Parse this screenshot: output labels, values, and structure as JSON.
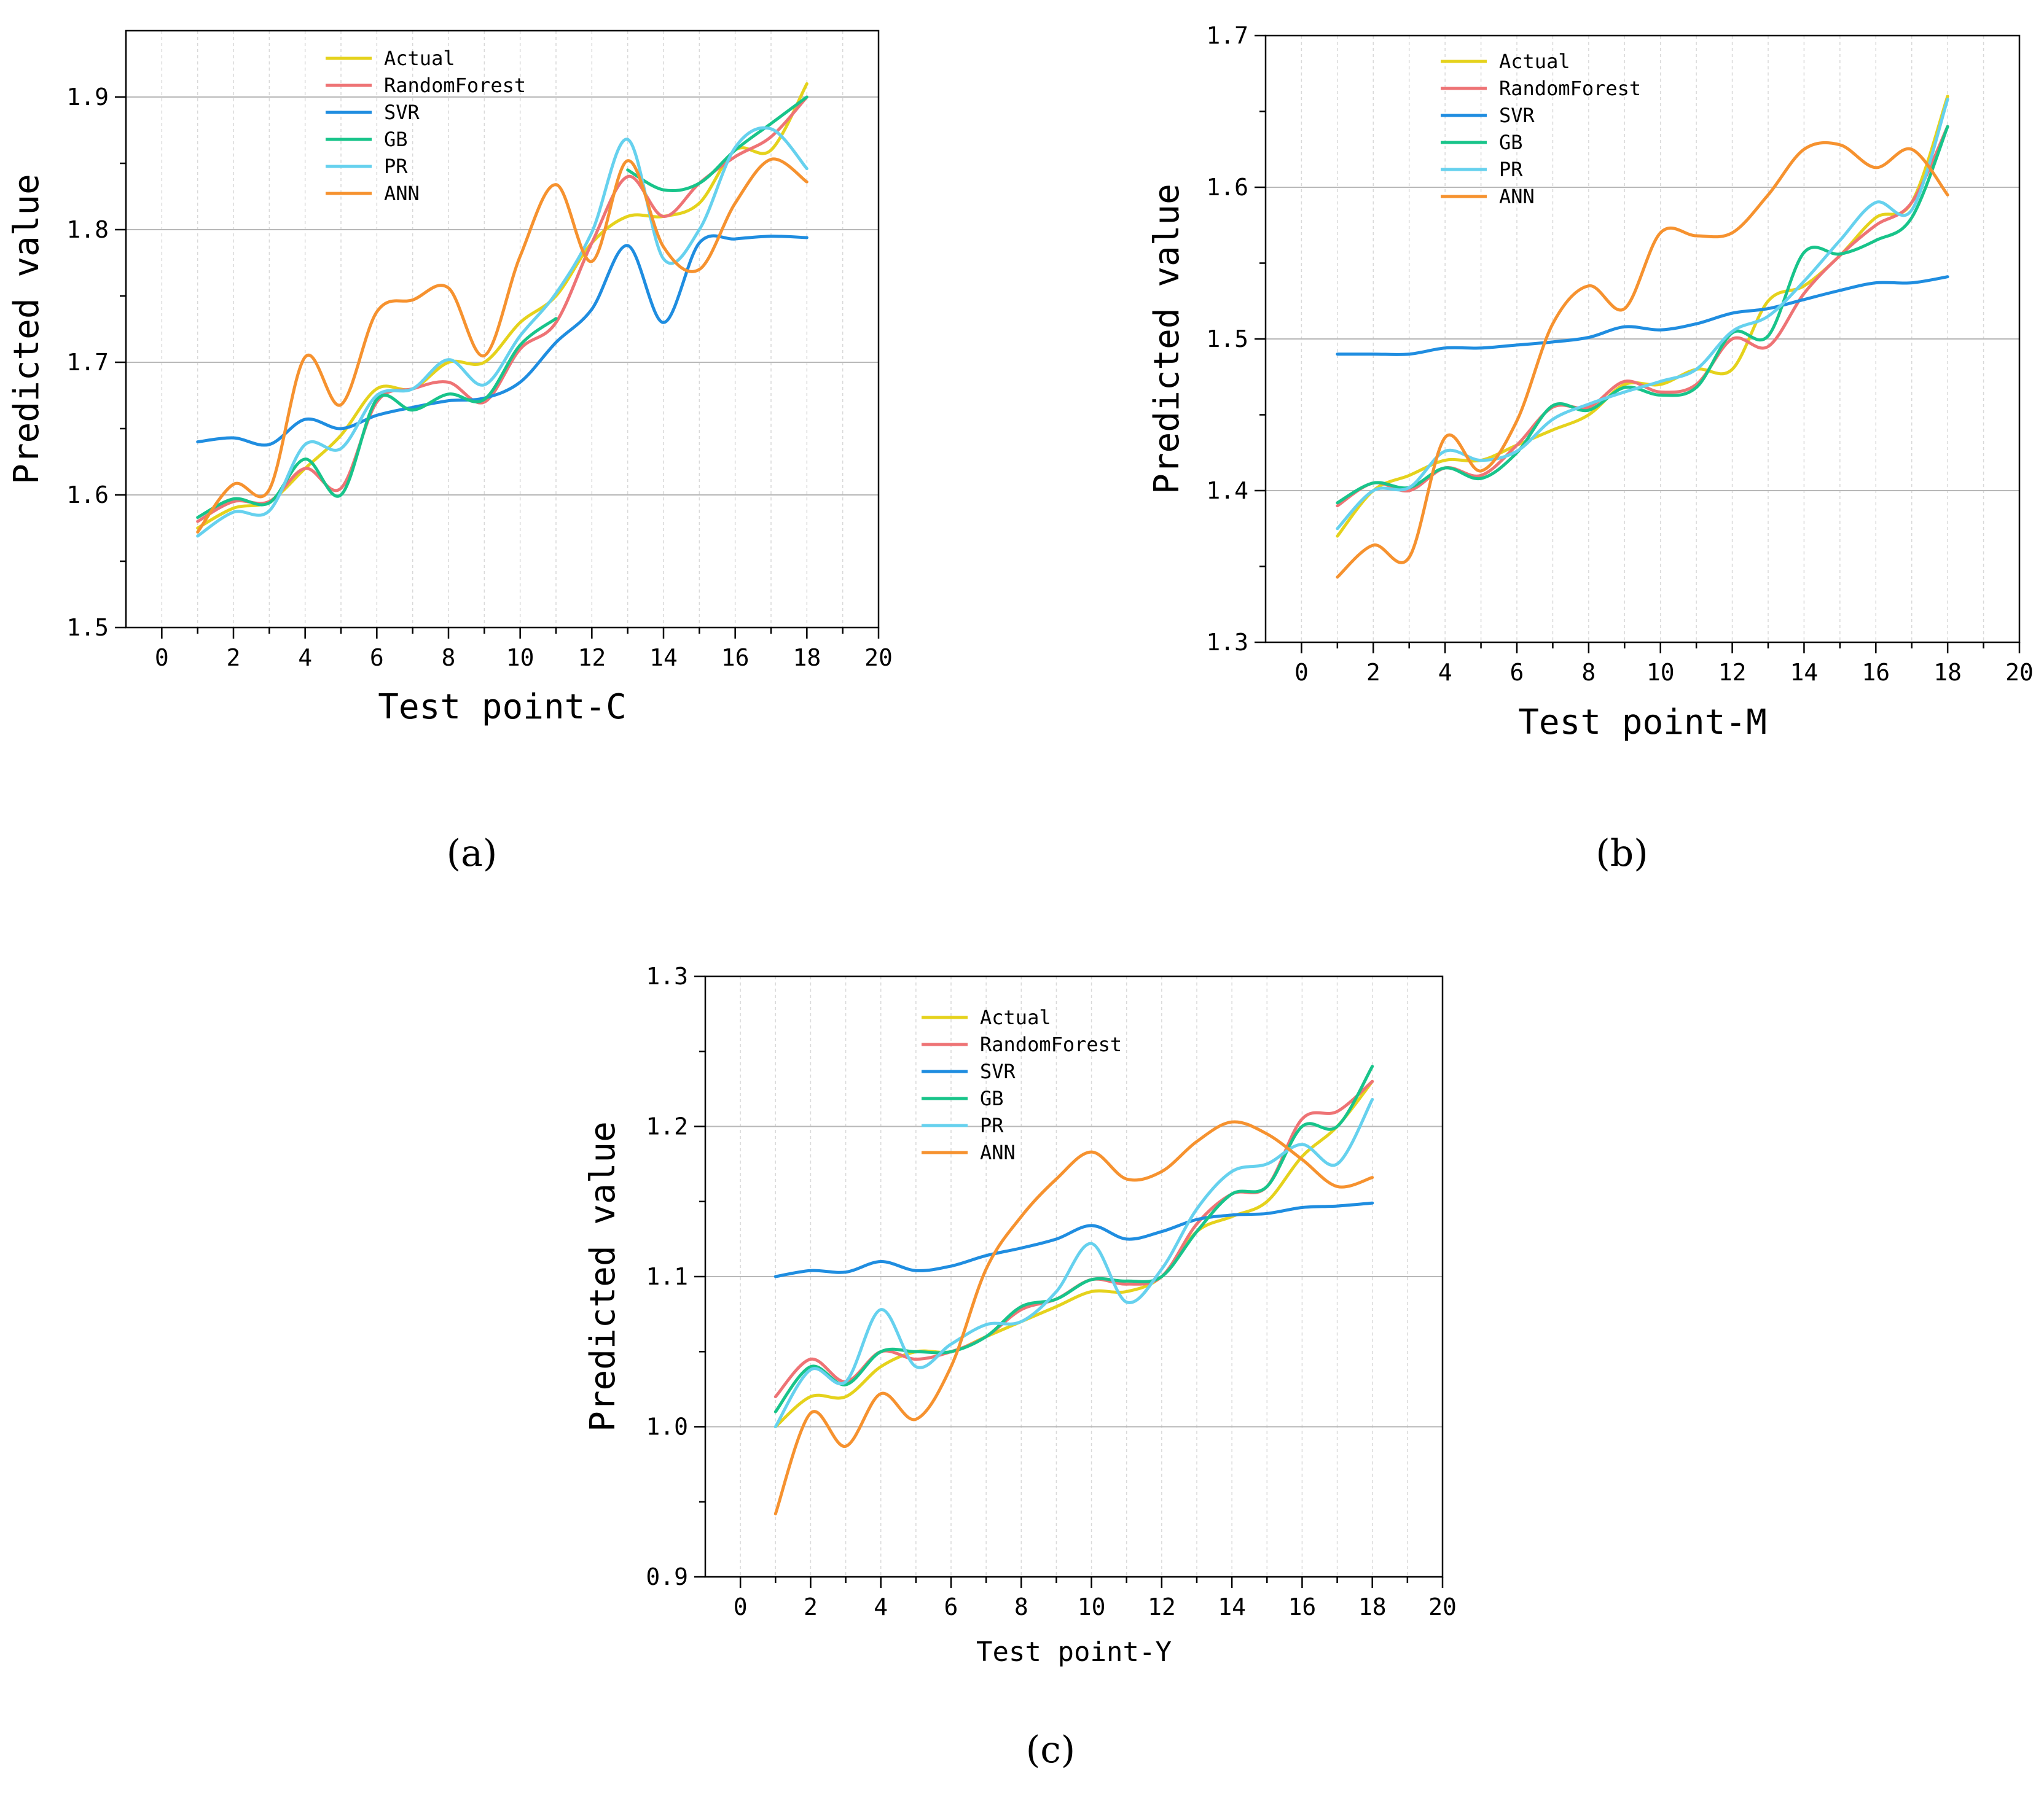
{
  "colors": {
    "Actual": "#e5d21c",
    "RandomForest": "#ee7375",
    "SVR": "#1f8de0",
    "GB": "#18c48a",
    "PR": "#66d1ee",
    "ANN": "#f6922f"
  },
  "chart_data": [
    {
      "type": "line",
      "panel_label": "(a)",
      "xlabel": "Test point-C",
      "ylabel": "Predicted value",
      "xlim": [
        -1,
        20
      ],
      "ylim": [
        1.5,
        1.95
      ],
      "xticks": [
        0,
        2,
        4,
        6,
        8,
        10,
        12,
        14,
        16,
        18,
        20
      ],
      "xtick_labels": [
        "0",
        "2",
        "4",
        "6",
        "8",
        "10",
        "12",
        "14",
        "16",
        "18",
        "20"
      ],
      "yticks": [
        1.5,
        1.6,
        1.7,
        1.8,
        1.9
      ],
      "ytick_labels": [
        "1.5",
        "1.6",
        "1.7",
        "1.8",
        "1.9"
      ],
      "grid": "horizontal",
      "legend": "top-center",
      "x": [
        1,
        2,
        3,
        4,
        5,
        6,
        7,
        8,
        9,
        10,
        11,
        12,
        13,
        14,
        15,
        16,
        17,
        18
      ],
      "series": [
        {
          "name": "Actual",
          "values": [
            1.575,
            1.59,
            1.595,
            1.62,
            1.645,
            1.68,
            1.68,
            1.7,
            1.7,
            1.73,
            1.75,
            1.79,
            1.81,
            1.81,
            1.82,
            1.86,
            1.86,
            1.91
          ]
        },
        {
          "name": "RandomForest",
          "values": [
            1.58,
            1.595,
            1.595,
            1.62,
            1.605,
            1.67,
            1.68,
            1.685,
            1.67,
            1.71,
            1.73,
            1.79,
            1.84,
            1.81,
            1.835,
            1.855,
            1.87,
            1.9
          ]
        },
        {
          "name": "SVR",
          "values": [
            1.64,
            1.643,
            1.638,
            1.657,
            1.65,
            1.66,
            1.666,
            1.671,
            1.673,
            1.685,
            1.715,
            1.74,
            1.788,
            1.73,
            1.79,
            1.793,
            1.795,
            1.794
          ]
        },
        {
          "name": "GB",
          "values": [
            1.583,
            1.597,
            1.594,
            1.627,
            1.6,
            1.672,
            1.664,
            1.676,
            1.672,
            1.713,
            1.733,
            null,
            1.845,
            1.83,
            1.835,
            1.86,
            1.88,
            1.9
          ]
        },
        {
          "name": "PR",
          "values": [
            1.569,
            1.587,
            1.588,
            1.638,
            1.635,
            1.675,
            1.68,
            1.702,
            1.683,
            1.72,
            1.752,
            1.798,
            1.868,
            1.778,
            1.8,
            1.862,
            1.876,
            1.846
          ]
        },
        {
          "name": "ANN",
          "values": [
            1.572,
            1.608,
            1.604,
            1.704,
            1.668,
            1.738,
            1.747,
            1.756,
            1.705,
            1.78,
            1.834,
            1.776,
            1.852,
            1.787,
            1.77,
            1.82,
            1.853,
            1.836
          ]
        }
      ]
    },
    {
      "type": "line",
      "panel_label": "(b)",
      "xlabel": "Test point-M",
      "ylabel": "Predicted value",
      "xlim": [
        -1,
        20
      ],
      "ylim": [
        1.3,
        1.7
      ],
      "xticks": [
        0,
        2,
        4,
        6,
        8,
        10,
        12,
        14,
        16,
        18,
        20
      ],
      "xtick_labels": [
        "0",
        "2",
        "4",
        "6",
        "8",
        "10",
        "12",
        "14",
        "16",
        "18",
        "20"
      ],
      "yticks": [
        1.3,
        1.4,
        1.5,
        1.6,
        1.7
      ],
      "ytick_labels": [
        "1.3",
        "1.4",
        "1.5",
        "1.6",
        "1.7"
      ],
      "grid": "horizontal",
      "legend": "top-center",
      "x": [
        1,
        2,
        3,
        4,
        5,
        6,
        7,
        8,
        9,
        10,
        11,
        12,
        13,
        14,
        15,
        16,
        17,
        18
      ],
      "series": [
        {
          "name": "Actual",
          "values": [
            1.37,
            1.4,
            1.41,
            1.42,
            1.42,
            1.43,
            1.44,
            1.45,
            1.47,
            1.47,
            1.48,
            1.48,
            1.525,
            1.535,
            1.555,
            1.58,
            1.59,
            1.66
          ]
        },
        {
          "name": "RandomForest",
          "values": [
            1.39,
            1.405,
            1.4,
            1.415,
            1.41,
            1.43,
            1.455,
            1.455,
            1.472,
            1.465,
            1.47,
            1.5,
            1.495,
            1.53,
            1.555,
            1.575,
            1.59,
            1.64
          ]
        },
        {
          "name": "SVR",
          "values": [
            1.49,
            1.49,
            1.49,
            1.494,
            1.494,
            1.496,
            1.498,
            1.501,
            1.508,
            1.506,
            1.51,
            1.517,
            1.52,
            1.526,
            1.532,
            1.537,
            1.537,
            1.541
          ]
        },
        {
          "name": "GB",
          "values": [
            1.392,
            1.405,
            1.402,
            1.415,
            1.408,
            1.425,
            1.456,
            1.453,
            1.468,
            1.463,
            1.468,
            1.504,
            1.502,
            1.557,
            1.556,
            1.565,
            1.58,
            1.64
          ]
        },
        {
          "name": "PR",
          "values": [
            1.375,
            1.4,
            1.402,
            1.426,
            1.42,
            1.426,
            1.447,
            1.457,
            1.465,
            1.472,
            1.48,
            1.505,
            1.515,
            1.538,
            1.565,
            1.59,
            1.585,
            1.658
          ]
        },
        {
          "name": "ANN",
          "values": [
            1.343,
            1.364,
            1.356,
            1.435,
            1.413,
            1.446,
            1.51,
            1.535,
            1.52,
            1.57,
            1.568,
            1.57,
            1.595,
            1.625,
            1.628,
            1.613,
            1.625,
            1.595
          ]
        }
      ]
    },
    {
      "type": "line",
      "panel_label": "(c)",
      "xlabel": "Test point-Y",
      "ylabel": "Predicted value",
      "xlim": [
        -1,
        20
      ],
      "ylim": [
        0.9,
        1.3
      ],
      "xticks": [
        0,
        2,
        4,
        6,
        8,
        10,
        12,
        14,
        16,
        18,
        20
      ],
      "xtick_labels": [
        "0",
        "2",
        "4",
        "6",
        "8",
        "10",
        "12",
        "14",
        "16",
        "18",
        "20"
      ],
      "yticks": [
        0.9,
        1.0,
        1.1,
        1.2,
        1.3
      ],
      "ytick_labels": [
        "0.9",
        "1.0",
        "1.1",
        "1.2",
        "1.3"
      ],
      "grid": "horizontal",
      "legend": "top-center",
      "x": [
        1,
        2,
        3,
        4,
        5,
        6,
        7,
        8,
        9,
        10,
        11,
        12,
        13,
        14,
        15,
        16,
        17,
        18
      ],
      "series": [
        {
          "name": "Actual",
          "values": [
            1.0,
            1.02,
            1.02,
            1.04,
            1.05,
            1.05,
            1.06,
            1.07,
            1.08,
            1.09,
            1.09,
            1.1,
            1.13,
            1.14,
            1.15,
            1.18,
            1.2,
            1.23
          ]
        },
        {
          "name": "RandomForest",
          "values": [
            1.02,
            1.045,
            1.03,
            1.05,
            1.045,
            1.05,
            1.06,
            1.078,
            1.085,
            1.098,
            1.095,
            1.1,
            1.135,
            1.155,
            1.16,
            1.205,
            1.21,
            1.23
          ]
        },
        {
          "name": "SVR",
          "values": [
            1.1,
            1.104,
            1.103,
            1.11,
            1.104,
            1.107,
            1.114,
            1.119,
            1.125,
            1.134,
            1.125,
            1.13,
            1.138,
            1.141,
            1.142,
            1.146,
            1.147,
            1.149
          ]
        },
        {
          "name": "GB",
          "values": [
            1.01,
            1.04,
            1.028,
            1.05,
            1.05,
            1.05,
            1.06,
            1.08,
            1.085,
            1.098,
            1.097,
            1.1,
            1.13,
            1.155,
            1.16,
            1.2,
            1.2,
            1.24
          ]
        },
        {
          "name": "PR",
          "values": [
            1.0,
            1.038,
            1.03,
            1.078,
            1.04,
            1.055,
            1.068,
            1.07,
            1.09,
            1.122,
            1.083,
            1.105,
            1.145,
            1.17,
            1.175,
            1.188,
            1.175,
            1.218
          ]
        },
        {
          "name": "ANN",
          "values": [
            0.942,
            1.009,
            0.987,
            1.022,
            1.005,
            1.04,
            1.105,
            1.14,
            1.165,
            1.183,
            1.165,
            1.17,
            1.19,
            1.203,
            1.195,
            1.178,
            1.16,
            1.166
          ]
        }
      ]
    }
  ]
}
